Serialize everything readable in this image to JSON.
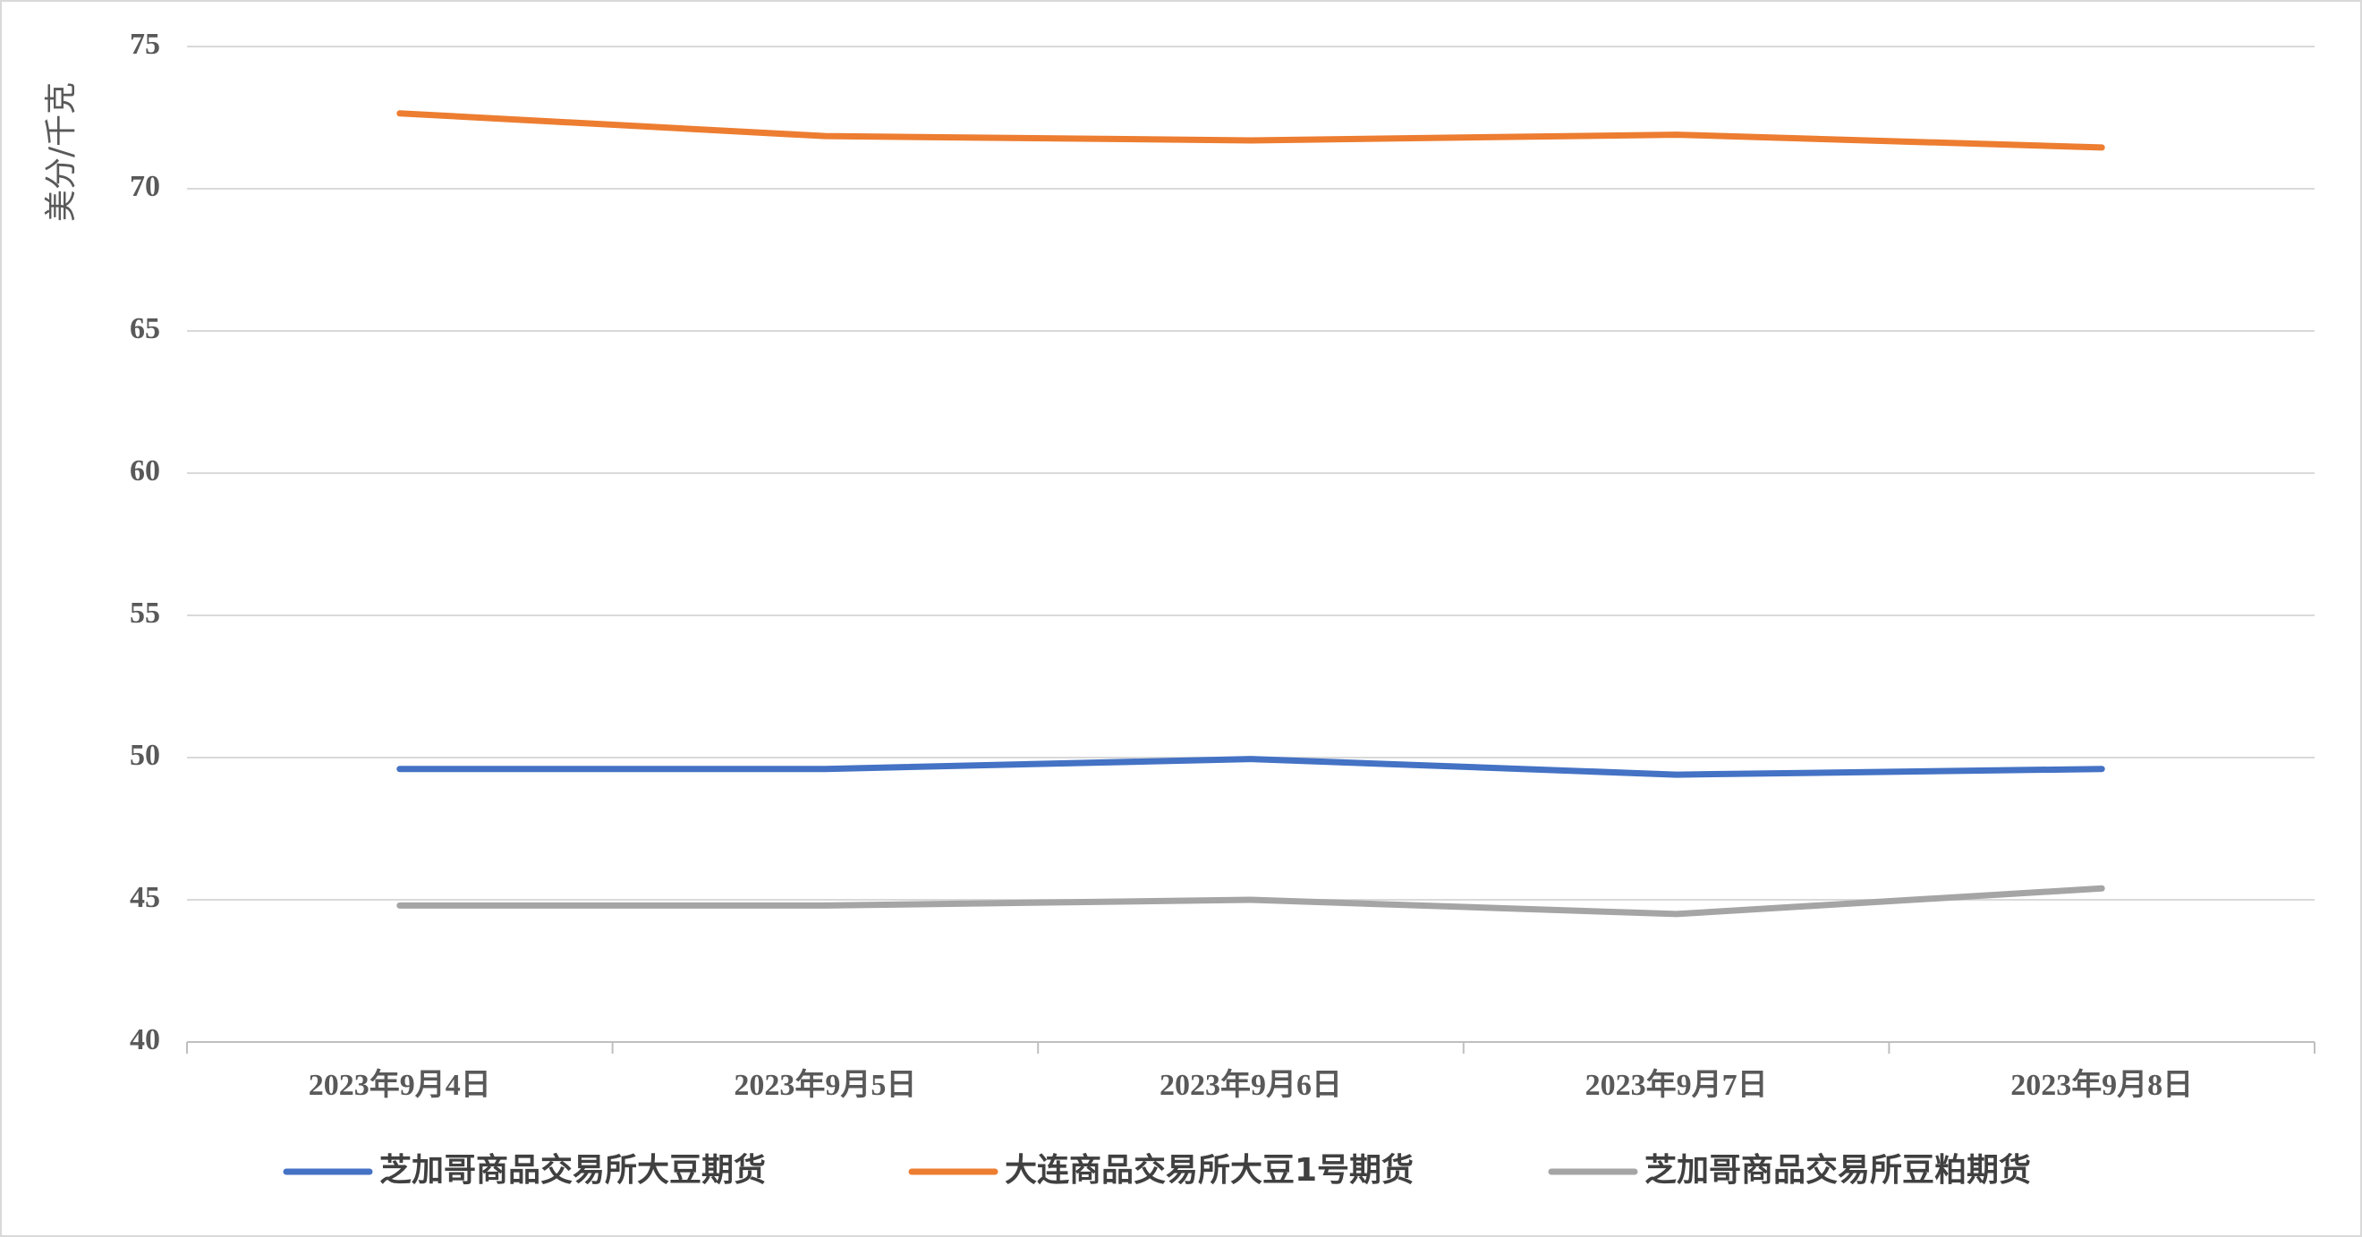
{
  "chart_data": {
    "type": "line",
    "y_axis_title": "美分/千克",
    "categories": [
      "2023年9月4日",
      "2023年9月5日",
      "2023年9月6日",
      "2023年9月7日",
      "2023年9月8日"
    ],
    "series": [
      {
        "name": "芝加哥商品交易所大豆期货",
        "color": "#4472c4",
        "values": [
          49.6,
          49.6,
          49.95,
          49.4,
          49.6
        ]
      },
      {
        "name": "大连商品交易所大豆1号期货",
        "color": "#ed7d31",
        "values": [
          72.65,
          71.85,
          71.7,
          71.9,
          71.45
        ]
      },
      {
        "name": "芝加哥商品交易所豆粕期货",
        "color": "#a5a5a5",
        "values": [
          44.8,
          44.8,
          45.0,
          44.5,
          45.4
        ]
      }
    ],
    "ylim": [
      40,
      75
    ],
    "yticks": [
      40,
      45,
      50,
      55,
      60,
      65,
      70,
      75
    ],
    "grid": true,
    "legend": "bottom"
  }
}
